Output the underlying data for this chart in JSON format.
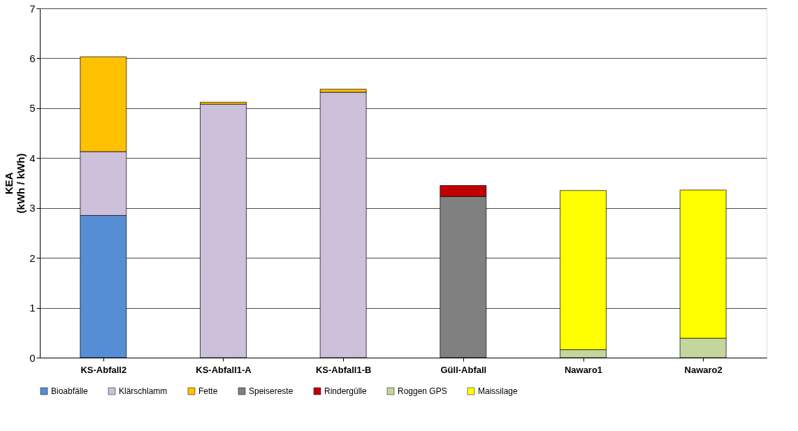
{
  "chart_data": {
    "type": "bar",
    "stacked": true,
    "ylabel": "KEA\n(kWh / kWh)",
    "categories": [
      "KS-Abfall2",
      "KS-Abfall1-A",
      "KS-Abfall1-B",
      "Güll-Abfall",
      "Nawaro1",
      "Nawaro2"
    ],
    "series": [
      {
        "name": "Bioabfälle",
        "color": "#558ed5",
        "values": [
          2.85,
          0,
          0,
          0,
          0,
          0
        ]
      },
      {
        "name": "Klärschlamm",
        "color": "#ccc0da",
        "values": [
          1.28,
          5.08,
          5.32,
          0,
          0,
          0
        ]
      },
      {
        "name": "Fette",
        "color": "#ffc000",
        "values": [
          1.9,
          0.04,
          0.06,
          0,
          0,
          0
        ]
      },
      {
        "name": "Speisereste",
        "color": "#808080",
        "values": [
          0,
          0,
          0,
          3.23,
          0,
          0
        ]
      },
      {
        "name": "Rindergülle",
        "color": "#c00000",
        "values": [
          0,
          0,
          0,
          0.22,
          0,
          0
        ]
      },
      {
        "name": "Roggen GPS",
        "color": "#c3d69b",
        "values": [
          0,
          0,
          0,
          0,
          0.16,
          0.39
        ]
      },
      {
        "name": "Maissilage",
        "color": "#ffff00",
        "values": [
          0,
          0,
          0,
          0,
          3.19,
          2.97
        ]
      }
    ],
    "ylim": [
      0,
      7
    ],
    "yticks": [
      0,
      1,
      2,
      3,
      4,
      5,
      6,
      7
    ],
    "grid": "y",
    "legend": "bottom"
  }
}
